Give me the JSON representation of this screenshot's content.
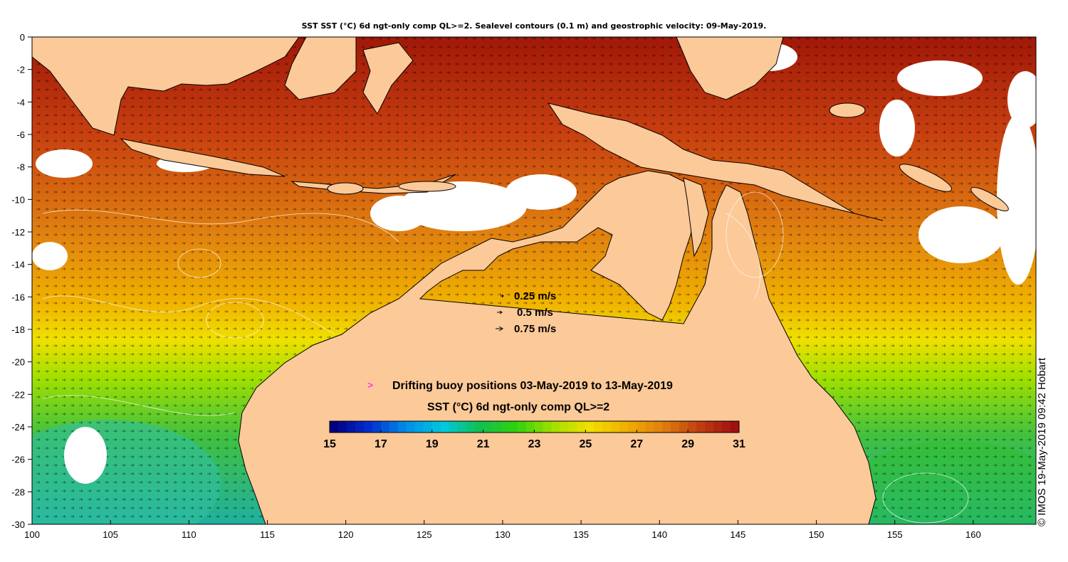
{
  "title": "SST SST (°C) 6d ngt-only comp QL>=2. Sealevel contours (0.1 m) and geostrophic velocity: 09-May-2019.",
  "credit": "© IMOS 19-May-2019 09:42 Hobart",
  "axes": {
    "x_ticks": [
      "100",
      "105",
      "110",
      "115",
      "120",
      "125",
      "130",
      "135",
      "140",
      "145",
      "150",
      "155",
      "160"
    ],
    "y_ticks": [
      "0",
      "-2",
      "-4",
      "-6",
      "-8",
      "-10",
      "-12",
      "-14",
      "-16",
      "-18",
      "-20",
      "-22",
      "-24",
      "-26",
      "-28",
      "-30"
    ],
    "lon_range": [
      100,
      164
    ],
    "lat_range": [
      -30,
      0
    ]
  },
  "velocity_legend": [
    {
      "label": "0.25 m/s"
    },
    {
      "label": "0.5 m/s"
    },
    {
      "label": "0.75 m/s"
    }
  ],
  "buoy_legend": {
    "symbol": ">",
    "label": "Drifting buoy positions 03-May-2019 to 13-May-2019",
    "color": "#ff00ff"
  },
  "colorbar": {
    "title": "SST (°C) 6d ngt-only comp QL>=2",
    "ticks": [
      "15",
      "17",
      "19",
      "21",
      "23",
      "25",
      "27",
      "29",
      "31"
    ],
    "range": [
      15,
      31
    ],
    "stops": [
      "#000080",
      "#0030d0",
      "#0090e8",
      "#00c8e0",
      "#10c050",
      "#30d010",
      "#a0e000",
      "#f0e000",
      "#f0b000",
      "#e08010",
      "#c04010",
      "#a01010"
    ]
  },
  "colors": {
    "land": "#fcc998",
    "cloud": "#ffffff"
  }
}
